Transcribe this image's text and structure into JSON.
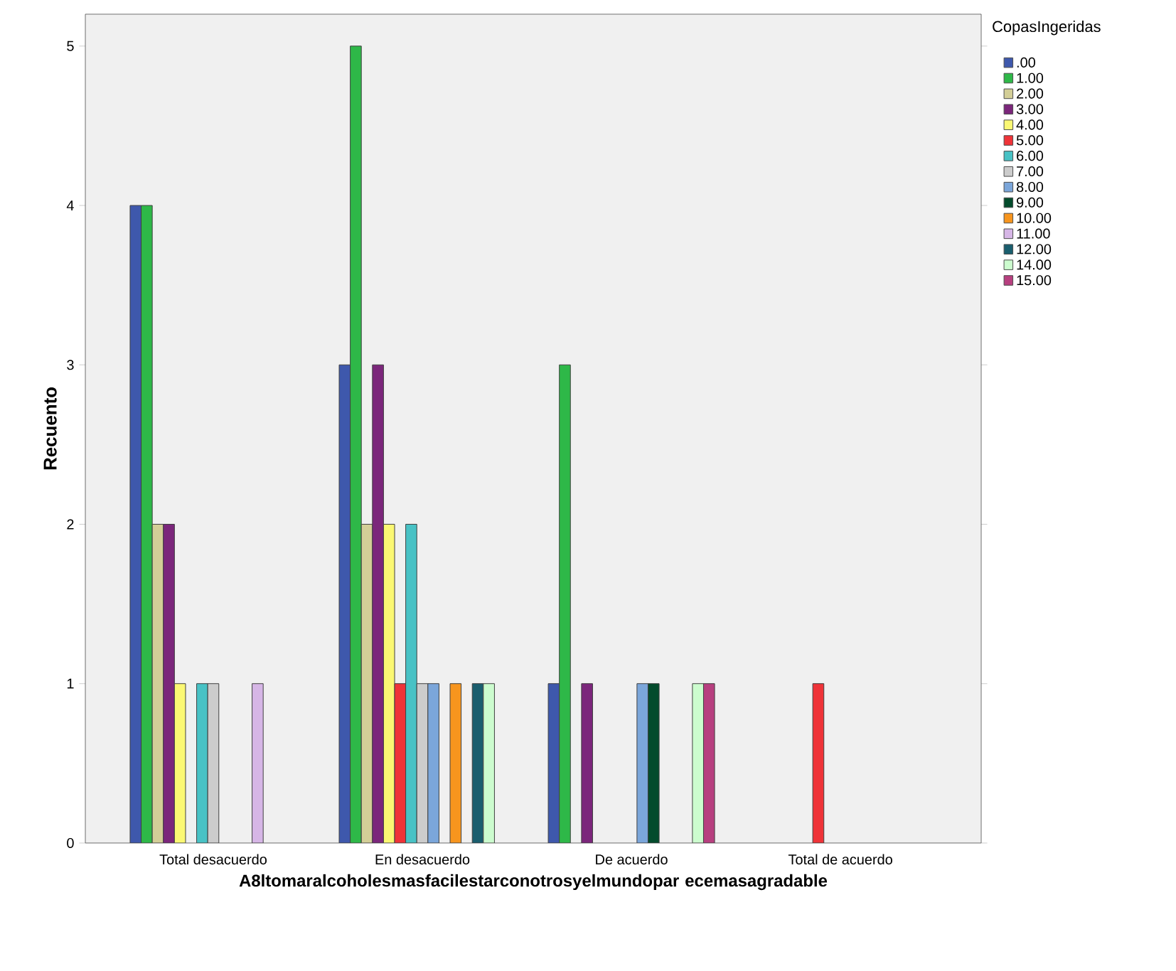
{
  "chart_data": {
    "type": "bar",
    "xlabel": "A8ltomaralcoholesmasfacilestarconotrosyelmundopar ecemasagradable",
    "ylabel": "Recuento",
    "legend_title": "CopasIngeridas",
    "categories": [
      "Total desacuerdo",
      "En desacuerdo",
      "De acuerdo",
      "Total de acuerdo"
    ],
    "ylim": [
      0,
      5.2
    ],
    "yticks": [
      0,
      1,
      2,
      3,
      4,
      5
    ],
    "grid": false,
    "legend": "right",
    "series": [
      {
        "name": ".00",
        "color": "#3e58ac",
        "values": [
          4,
          3,
          1,
          null
        ]
      },
      {
        "name": "1.00",
        "color": "#2eb848",
        "values": [
          4,
          5,
          3,
          null
        ]
      },
      {
        "name": "2.00",
        "color": "#d3ce97",
        "values": [
          2,
          2,
          null,
          null
        ]
      },
      {
        "name": "3.00",
        "color": "#7b267b",
        "values": [
          2,
          3,
          1,
          null
        ]
      },
      {
        "name": "4.00",
        "color": "#fbf873",
        "values": [
          1,
          2,
          null,
          null
        ]
      },
      {
        "name": "5.00",
        "color": "#ef3338",
        "values": [
          null,
          1,
          null,
          1
        ]
      },
      {
        "name": "6.00",
        "color": "#48c2c5",
        "values": [
          1,
          2,
          null,
          null
        ]
      },
      {
        "name": "7.00",
        "color": "#cccccc",
        "values": [
          1,
          1,
          null,
          null
        ]
      },
      {
        "name": "8.00",
        "color": "#7ba6da",
        "values": [
          null,
          1,
          1,
          null
        ]
      },
      {
        "name": "9.00",
        "color": "#034b2c",
        "values": [
          null,
          null,
          1,
          null
        ]
      },
      {
        "name": "10.00",
        "color": "#f7951e",
        "values": [
          null,
          1,
          null,
          null
        ]
      },
      {
        "name": "11.00",
        "color": "#d6b6e6",
        "values": [
          1,
          null,
          null,
          null
        ]
      },
      {
        "name": "12.00",
        "color": "#1a5e6e",
        "values": [
          null,
          1,
          null,
          null
        ]
      },
      {
        "name": "14.00",
        "color": "#ccfcce",
        "values": [
          null,
          1,
          1,
          null
        ]
      },
      {
        "name": "15.00",
        "color": "#b73f7f",
        "values": [
          null,
          null,
          1,
          null
        ]
      }
    ]
  }
}
